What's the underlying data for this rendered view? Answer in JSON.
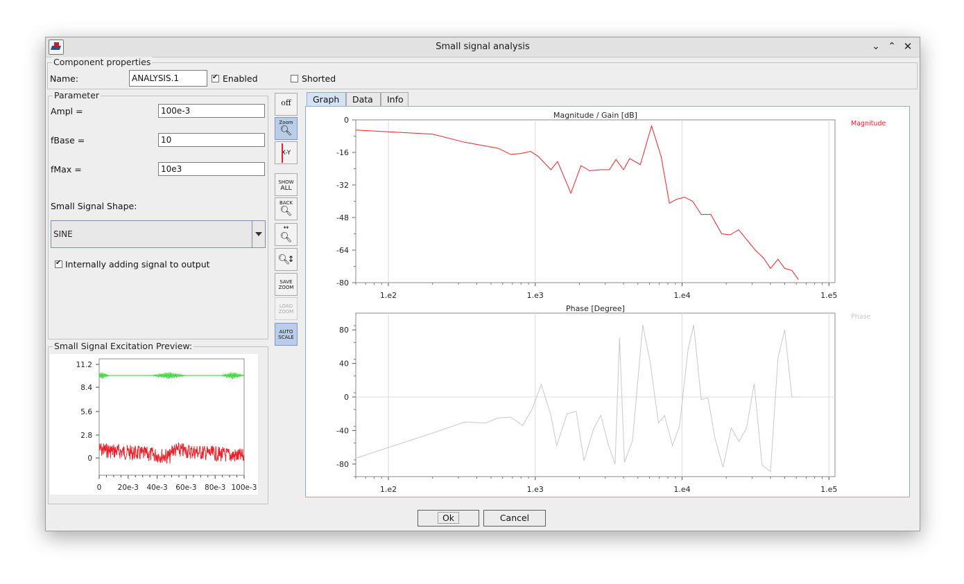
{
  "window": {
    "title": "Small signal analysis"
  },
  "properties": {
    "legend": "Component properties",
    "name_label": "Name:",
    "name_value": "ANALYSIS.1",
    "enabled_label": "Enabled",
    "enabled": true,
    "shorted_label": "Shorted",
    "shorted": false
  },
  "parameter": {
    "legend": "Parameter",
    "fields": [
      {
        "label": "Ampl =",
        "value": "100e-3"
      },
      {
        "label": "fBase =",
        "value": "10"
      },
      {
        "label": "fMax =",
        "value": "10e3"
      }
    ],
    "shape_label": "Small Signal Shape:",
    "shape_value": "SINE",
    "internal_label": "Internally adding signal to output",
    "internal_checked": true
  },
  "preview": {
    "legend": "Small Signal Excitation Preview:",
    "y_ticks": [
      "11.2",
      "8.4",
      "5.6",
      "2.8",
      "0"
    ],
    "x_ticks": [
      "0",
      "20e-3",
      "40e-3",
      "60e-3",
      "80e-3",
      "100e-3"
    ]
  },
  "toolbar": {
    "off": "off",
    "zoom": "Zoom",
    "xy": "X-Y",
    "show_all": [
      "SHOW",
      "ALL"
    ],
    "back": "BACK",
    "save_zoom": [
      "SAVE",
      "ZOOM"
    ],
    "load_zoom": [
      "LOAD",
      "ZOOM"
    ],
    "auto_scale": [
      "AUTO",
      "SCALE"
    ]
  },
  "tabs": [
    "Graph",
    "Data",
    "Info"
  ],
  "colors": {
    "magnitude": "#e8212a",
    "phase": "#c8c8c8",
    "green": "#27d427",
    "tab_active": "#d5e2f3"
  },
  "chart_data": [
    {
      "type": "line",
      "title": "Magnitude / Gain [dB]",
      "x_scale": "log",
      "xlim": [
        60,
        110000
      ],
      "ylim": [
        -80,
        0
      ],
      "x_ticks": [
        "1.e2",
        "1.e3",
        "1.e4",
        "1.e5"
      ],
      "y_ticks": [
        "0",
        "-16",
        "-32",
        "-48",
        "-64",
        "-80"
      ],
      "series": [
        {
          "name": "Magnitude",
          "x": [
            60,
            200,
            330,
            560,
            680,
            800,
            930,
            1050,
            1280,
            1420,
            1750,
            2050,
            2350,
            2800,
            3200,
            3550,
            4000,
            4400,
            5200,
            6200,
            7200,
            8200,
            9200,
            10400,
            11800,
            13500,
            15700,
            18600,
            21200,
            24300,
            27300,
            31500,
            36000,
            40000,
            45000,
            50000,
            56000,
            62000
          ],
          "y": [
            -5,
            -7,
            -11,
            -14,
            -17,
            -16.5,
            -15.5,
            -18,
            -24.5,
            -20.5,
            -36,
            -22.5,
            -25,
            -24.5,
            -24.5,
            -19.5,
            -24.5,
            -19,
            -22,
            -3,
            -18,
            -41,
            -39,
            -38,
            -40,
            -46.5,
            -46.5,
            -56,
            -56.5,
            -54,
            -58.5,
            -64,
            -68,
            -73,
            -68.5,
            -73,
            -74,
            -78.5
          ]
        }
      ]
    },
    {
      "type": "line",
      "title": "Phase [Degree]",
      "x_scale": "log",
      "xlim": [
        60,
        110000
      ],
      "ylim": [
        -95,
        100
      ],
      "x_ticks": [
        "1.e2",
        "1.e3",
        "1.e4",
        "1.e5"
      ],
      "y_ticks": [
        "80",
        "40",
        "0",
        "-40",
        "-80"
      ],
      "series": [
        {
          "name": "Phase",
          "x": [
            60,
            200,
            330,
            460,
            560,
            680,
            820,
            950,
            1100,
            1280,
            1400,
            1650,
            1900,
            2150,
            2500,
            2800,
            3150,
            3500,
            3750,
            4050,
            4600,
            5400,
            6100,
            6900,
            7600,
            8600,
            9600,
            11000,
            12000,
            13500,
            15000,
            16700,
            19000,
            21600,
            24400,
            27500,
            31000,
            35000,
            40000,
            45000,
            50000,
            56000,
            63000
          ],
          "y": [
            -73,
            -43,
            -30,
            -31,
            -25,
            -24,
            -34,
            -15,
            15,
            -22,
            -58,
            -20,
            -17,
            -76,
            -38,
            -22,
            -57,
            -80,
            71,
            -78,
            -52,
            86,
            39,
            -31,
            -22,
            -58,
            -35,
            57,
            86,
            -3,
            -1,
            -48,
            -84,
            -37,
            -53,
            -37,
            16,
            -81,
            -89,
            47,
            80,
            0,
            0
          ]
        }
      ]
    }
  ]
}
